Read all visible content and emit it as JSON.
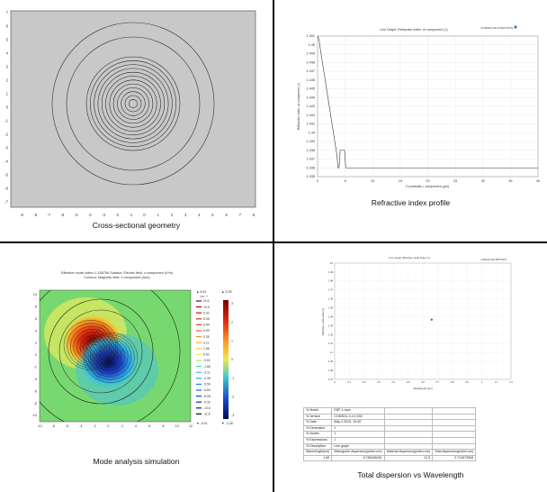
{
  "captions": {
    "geometry": "Cross-sectional geometry",
    "index_profile": "Refractive index profile",
    "mode": "Mode analysis simulation",
    "dispersion": "Total dispersion vs Wavelength"
  },
  "geometry": {
    "x_ticks": [
      "-9",
      "-8",
      "-7",
      "-6",
      "-5",
      "-4",
      "-3",
      "-2",
      "-1",
      "0",
      "1",
      "2",
      "3",
      "4",
      "5",
      "6",
      "7",
      "8"
    ],
    "y_ticks": [
      "7",
      "6",
      "5",
      "4",
      "3",
      "2",
      "1",
      "0",
      "-1",
      "-2",
      "-3",
      "-4",
      "-5",
      "-6",
      "-7"
    ],
    "fill_color": "#c8c8c8"
  },
  "index_profile": {
    "title": "Line Graph: Refractive index, xx component (1)",
    "brand": "COMSOL MULTIPHYSICS",
    "ylabel": "Refractive index, xx component (1)",
    "xlabel": "Coordinate, r component (µm)",
    "y_ticks": [
      "1.451",
      "1.45",
      "1.449",
      "1.448",
      "1.447",
      "1.446",
      "1.445",
      "1.444",
      "1.443",
      "1.442",
      "1.441",
      "1.44",
      "1.439",
      "1.438",
      "1.437",
      "1.436",
      "1.435"
    ],
    "x_ticks": [
      "0",
      "5",
      "10",
      "15",
      "20",
      "25",
      "30",
      "35",
      "40"
    ]
  },
  "chart_data": [
    {
      "type": "line",
      "title": "Line Graph: Refractive index, xx component (1)",
      "xlabel": "Coordinate, r component (µm)",
      "ylabel": "Refractive index, xx component (1)",
      "xlim": [
        0,
        40
      ],
      "ylim": [
        1.435,
        1.451
      ],
      "series": [
        {
          "x": [
            0,
            0.3,
            0.5,
            1,
            2,
            3,
            3.5,
            3.7,
            3.9,
            4.1,
            4.5,
            4.9,
            5.1,
            5.3,
            6,
            10,
            20,
            30,
            40
          ],
          "y": [
            1.451,
            1.4505,
            1.4495,
            1.4475,
            1.4435,
            1.4395,
            1.4375,
            1.436,
            1.436,
            1.438,
            1.438,
            1.438,
            1.436,
            1.436,
            1.436,
            1.436,
            1.436,
            1.436,
            1.436
          ]
        }
      ]
    },
    {
      "type": "scatter",
      "title": "Line Graph: Effective mode index (1)",
      "xlabel": "Wavelength (µm)",
      "ylabel": "Effective mode index (1)",
      "series": [
        {
          "x": [
            1.55
          ],
          "y": [
            1.4368
          ]
        }
      ]
    }
  ],
  "mode": {
    "title_line1": "Effective mode index=1.436796  Surface: Electric field, z component (V/m)",
    "title_line2": "Contour: Magnetic field, z component (A/m)",
    "x_ticks": [
      "-10",
      "-8",
      "-6",
      "-4",
      "-2",
      "0",
      "2",
      "4",
      "6",
      "8",
      "10",
      "12"
    ],
    "y_ticks": [
      "10",
      "8",
      "6",
      "4",
      "2",
      "0",
      "-2",
      "-4",
      "-6",
      "-8",
      "-10"
    ],
    "contour_max": "▲ 8.91",
    "contour_exp": "×10⁻¹⁴",
    "contour_min": "▼ -9.01",
    "contour_levels": [
      "11.8",
      "10.6",
      "9.32",
      "8.08",
      "6.84",
      "5.59",
      "4.35",
      "3.11",
      "1.86",
      "0.62",
      "-0.62",
      "-1.86",
      "-3.11",
      "-4.35",
      "-5.59",
      "-6.84",
      "-8.08",
      "-9.32",
      "-10.6",
      "-11.8"
    ],
    "surface_max": "▲ 3.28",
    "surface_min": "▼ -3.28",
    "surface_ticks": [
      "3",
      "2",
      "1",
      "0",
      "-1",
      "-2",
      "-3"
    ]
  },
  "dispersion": {
    "title": "Line Graph: Effective mode index (1)",
    "brand": "COMSOL MULTIPHYSICS",
    "ylabel": "Effective mode index (1)",
    "xlabel": "Wavelength (µm)",
    "y_ticks": [
      "1.5",
      "1.49",
      "1.48",
      "1.47",
      "1.46",
      "1.45",
      "1.44",
      "1.43",
      "1.42",
      "1.41",
      "1.4",
      "1.39",
      "1.38",
      "1.37"
    ],
    "x_ticks": [
      "0",
      "0.1",
      "0.2",
      "0.3",
      "0.4",
      "0.5",
      "0.6",
      "0.7",
      "0.8",
      "0.9",
      "1",
      "1.1",
      "1.2"
    ],
    "table": [
      [
        "% Model",
        "DSF-1.mph",
        "",
        ""
      ],
      [
        "% Version",
        "COMSOL 4.4.0.150",
        "",
        ""
      ],
      [
        "% Date",
        "May 3 2015, 15:49",
        "",
        ""
      ],
      [
        "% Dimension",
        "1",
        "",
        ""
      ],
      [
        "% Nodes",
        "1",
        "",
        ""
      ],
      [
        "% Expressions",
        "1",
        "",
        ""
      ],
      [
        "% Description",
        "Line graph",
        "",
        ""
      ],
      [
        "Wavelength(um)",
        "Waveguide dispersion(ps/km-nm)",
        "Material dispersion(ps/km-nm)",
        "Total dispersion(ps/km-nm)"
      ],
      [
        "1.55",
        "-9.785426091",
        "12.5",
        "2.714573908"
      ]
    ]
  },
  "colors": {
    "grid": "#d8d8d8",
    "plot_line": "#333333",
    "point": "#e0302a"
  }
}
